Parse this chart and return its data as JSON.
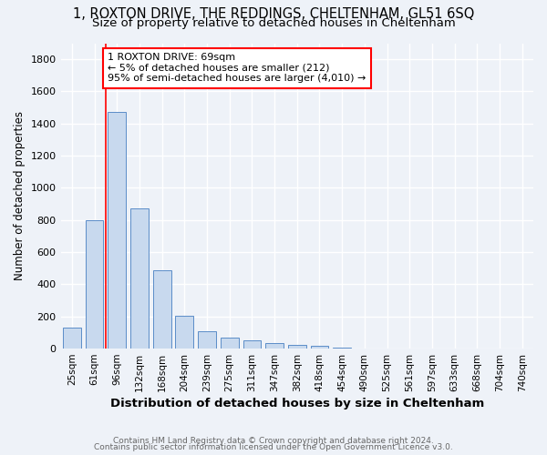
{
  "title1": "1, ROXTON DRIVE, THE REDDINGS, CHELTENHAM, GL51 6SQ",
  "title2": "Size of property relative to detached houses in Cheltenham",
  "xlabel": "Distribution of detached houses by size in Cheltenham",
  "ylabel": "Number of detached properties",
  "categories": [
    "25sqm",
    "61sqm",
    "96sqm",
    "132sqm",
    "168sqm",
    "204sqm",
    "239sqm",
    "275sqm",
    "311sqm",
    "347sqm",
    "382sqm",
    "418sqm",
    "454sqm",
    "490sqm",
    "525sqm",
    "561sqm",
    "597sqm",
    "633sqm",
    "668sqm",
    "704sqm",
    "740sqm"
  ],
  "values": [
    130,
    800,
    1470,
    875,
    490,
    205,
    110,
    70,
    50,
    35,
    25,
    20,
    5,
    3,
    2,
    2,
    1,
    1,
    1,
    1,
    2
  ],
  "bar_color_face": "#c8d9ee",
  "bar_color_edge": "#5b8dc8",
  "ylim": [
    0,
    1900
  ],
  "yticks": [
    0,
    200,
    400,
    600,
    800,
    1000,
    1200,
    1400,
    1600,
    1800
  ],
  "red_line_x": 1.5,
  "annotation_text_line1": "1 ROXTON DRIVE: 69sqm",
  "annotation_text_line2": "← 5% of detached houses are smaller (212)",
  "annotation_text_line3": "95% of semi-detached houses are larger (4,010) →",
  "footer1": "Contains HM Land Registry data © Crown copyright and database right 2024.",
  "footer2": "Contains public sector information licensed under the Open Government Licence v3.0.",
  "bg_color": "#eef2f8",
  "grid_color": "#ffffff",
  "title1_fontsize": 10.5,
  "title2_fontsize": 9.5,
  "ylabel_fontsize": 8.5,
  "xlabel_fontsize": 9.5
}
